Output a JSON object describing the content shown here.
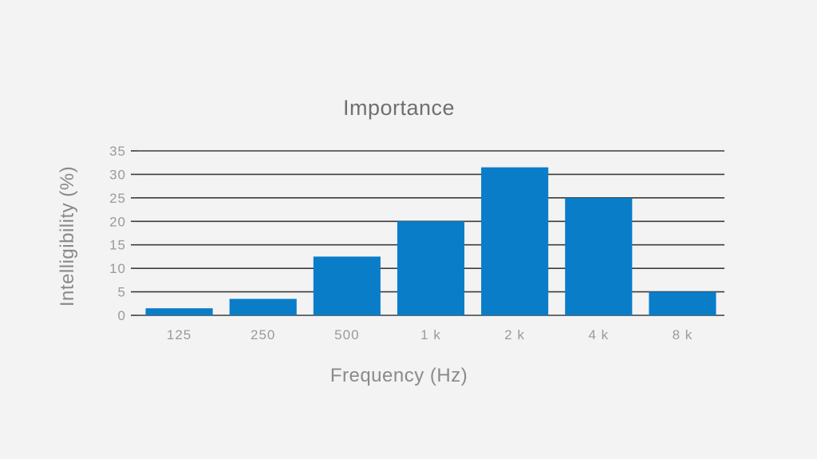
{
  "chart_data": {
    "type": "bar",
    "title": "Importance",
    "xlabel": "Frequency (Hz)",
    "ylabel": "Intelligibility (%)",
    "categories": [
      "125",
      "250",
      "500",
      "1 k",
      "2 k",
      "4 k",
      "8 k"
    ],
    "values": [
      1.5,
      3.5,
      12.5,
      20,
      31.5,
      25,
      5
    ],
    "ylim": [
      0,
      35
    ],
    "yticks": [
      0,
      5,
      10,
      15,
      20,
      25,
      30,
      35
    ],
    "grid": true,
    "legend": "none",
    "colors": {
      "bar": "#0a7dc9",
      "grid": "#3c3c3c",
      "background": "#f3f3f3"
    }
  }
}
